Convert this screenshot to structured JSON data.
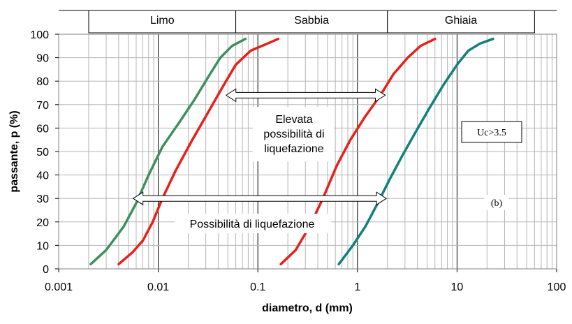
{
  "chart_data": {
    "type": "line",
    "x_scale": "log",
    "xlabel": "diametro, d (mm)",
    "ylabel": "passante, p (%)",
    "xlim": [
      0.001,
      100
    ],
    "ylim": [
      0,
      100
    ],
    "x_ticks": [
      0.001,
      0.01,
      0.1,
      1,
      10,
      100
    ],
    "x_tick_labels": [
      "0.001",
      "0.01",
      "0.1",
      "1",
      "10",
      "100"
    ],
    "y_ticks": [
      0,
      10,
      20,
      30,
      40,
      50,
      60,
      70,
      80,
      90,
      100
    ],
    "y_tick_labels": [
      "0",
      "10",
      "20",
      "30",
      "40",
      "50",
      "60",
      "70",
      "80",
      "90",
      "100"
    ],
    "grid": true,
    "zones": [
      {
        "label": "Limo",
        "x_range": [
          0.001,
          0.06
        ]
      },
      {
        "label": "Sabbia",
        "x_range": [
          0.06,
          2
        ]
      },
      {
        "label": "Ghiaia",
        "x_range": [
          2,
          60
        ]
      }
    ],
    "series": [
      {
        "color": "#3f8f5f",
        "x": [
          0.0021,
          0.003,
          0.0045,
          0.006,
          0.008,
          0.011,
          0.016,
          0.023,
          0.032,
          0.042,
          0.055,
          0.075
        ],
        "y": [
          2,
          8,
          18,
          28,
          40,
          52,
          62,
          72,
          82,
          90,
          95,
          98
        ]
      },
      {
        "color": "#e8201a",
        "x": [
          0.004,
          0.0055,
          0.007,
          0.0088,
          0.011,
          0.015,
          0.022,
          0.032,
          0.045,
          0.06,
          0.085,
          0.11,
          0.16
        ],
        "y": [
          2,
          7,
          12,
          20,
          30,
          42,
          55,
          67,
          78,
          87,
          93,
          95,
          98
        ]
      },
      {
        "color": "#e8201a",
        "x": [
          0.17,
          0.24,
          0.33,
          0.45,
          0.62,
          0.85,
          1.2,
          1.7,
          2.3,
          3.2,
          4.3,
          6.0
        ],
        "y": [
          2,
          8,
          18,
          30,
          44,
          55,
          65,
          74,
          83,
          90,
          95,
          98
        ]
      },
      {
        "color": "#12807f",
        "x": [
          0.65,
          0.9,
          1.2,
          1.6,
          2.1,
          2.8,
          3.8,
          5.2,
          7.2,
          10,
          13,
          17,
          23
        ],
        "y": [
          2,
          10,
          18,
          28,
          38,
          48,
          58,
          68,
          78,
          87,
          93,
          96,
          98
        ]
      }
    ],
    "annotations": [
      {
        "kind": "double-arrow",
        "x": [
          0.048,
          1.9
        ],
        "y": 74
      },
      {
        "kind": "double-arrow",
        "x": [
          0.0056,
          1.95
        ],
        "y": 30
      },
      {
        "kind": "text",
        "text_lines": [
          "Elevata",
          "possibilità di",
          "liquefazione"
        ]
      },
      {
        "kind": "text",
        "text": "Possibilità di liquefazione"
      },
      {
        "kind": "boxed-text",
        "text": "Uc>3.5"
      },
      {
        "kind": "text",
        "text": "(b)"
      }
    ]
  }
}
